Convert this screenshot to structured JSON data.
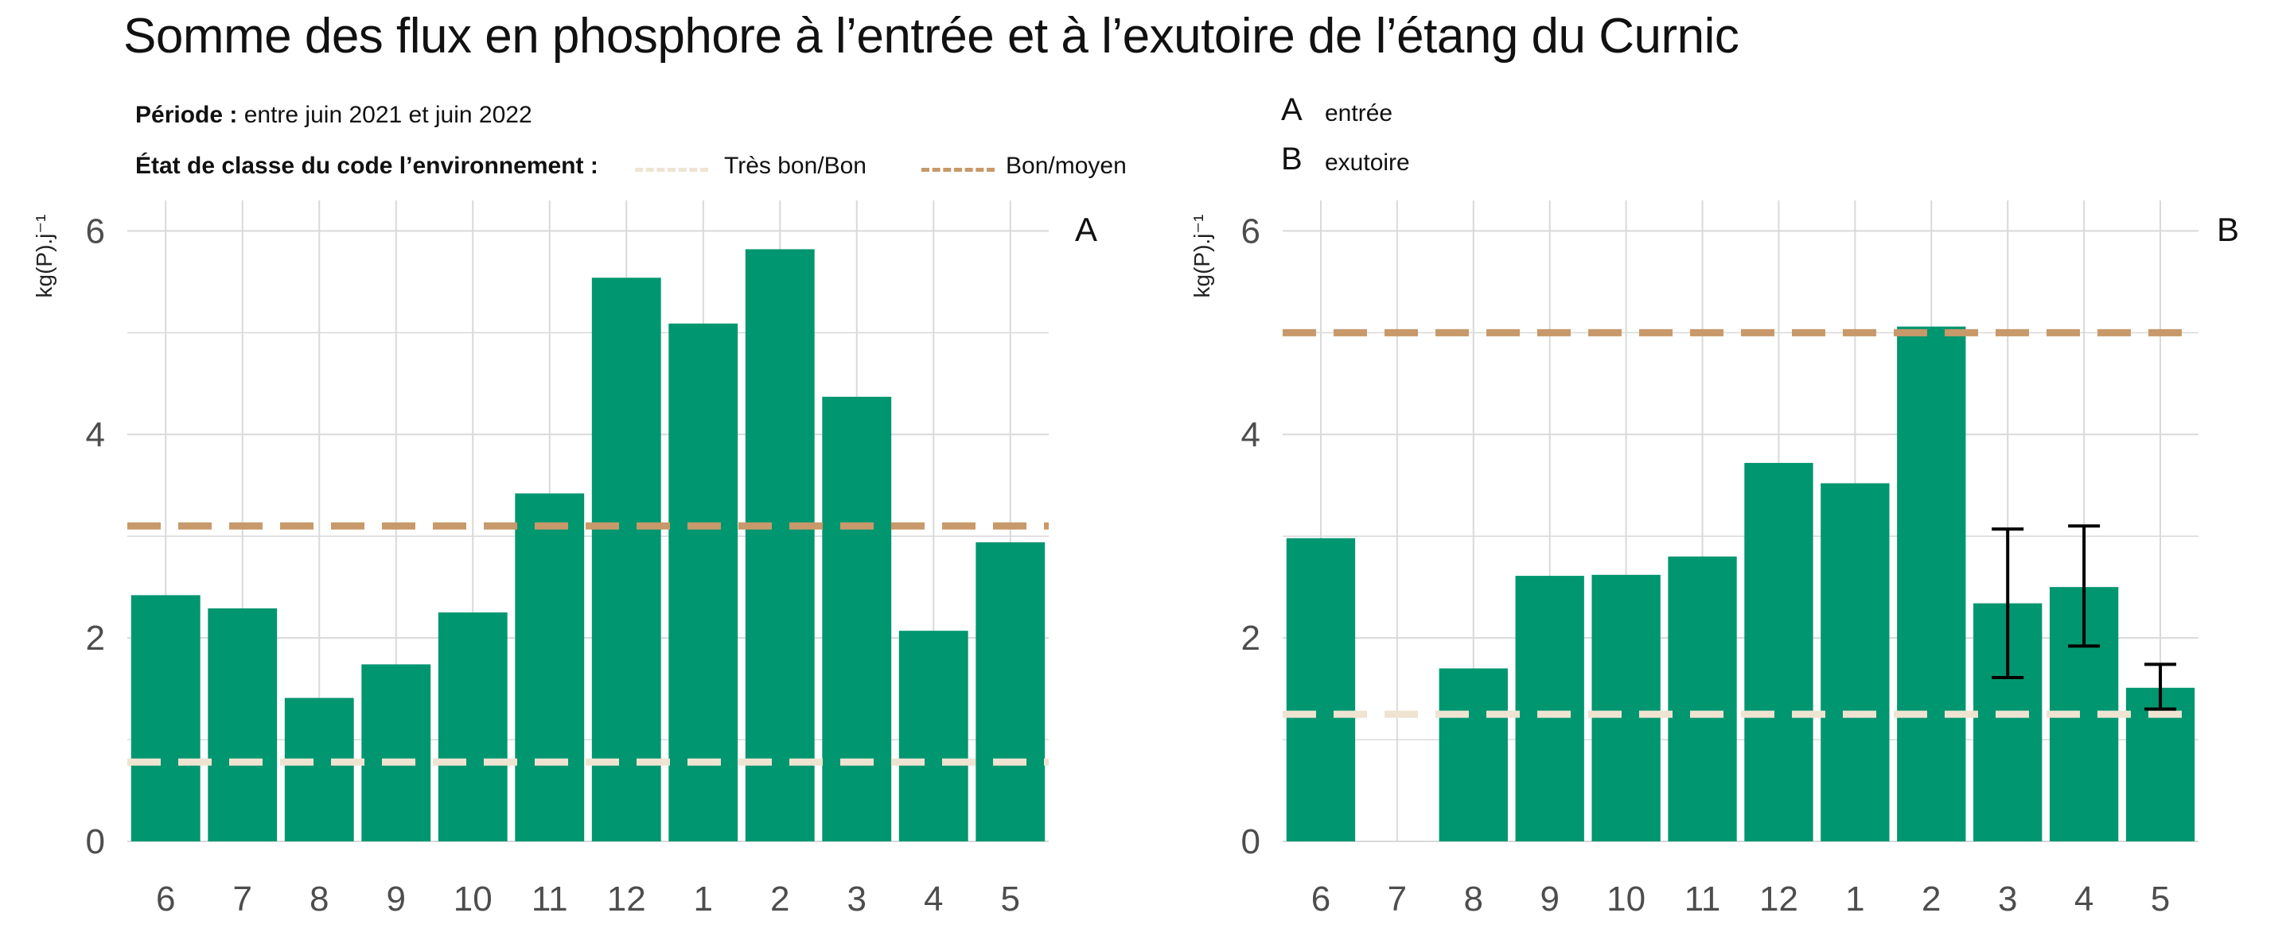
{
  "title": "Somme des flux en phosphore à l’entrée et à l’exutoire de l’étang du Curnic",
  "periode_label": "Période :",
  "periode_value": "entre juin 2021 et juin 2022",
  "etat_label": "État de classe du code l’environnement :",
  "legend_thresholds": [
    {
      "label": "Très bon/Bon",
      "color": "#efe3d2"
    },
    {
      "label": "Bon/moyen",
      "color": "#c8996a"
    }
  ],
  "panel_keys": [
    {
      "letter": "A",
      "desc": "entrée"
    },
    {
      "letter": "B",
      "desc": "exutoire"
    }
  ],
  "colors": {
    "bar": "#009670",
    "grid": "#d9d9d9",
    "errorbar": "#000000"
  },
  "chart_data": [
    {
      "type": "bar",
      "panel": "A",
      "ylabel": "kg(P).j⁻¹",
      "categories": [
        "6",
        "7",
        "8",
        "9",
        "10",
        "11",
        "12",
        "1",
        "2",
        "3",
        "4",
        "5"
      ],
      "values": [
        2.42,
        2.29,
        1.41,
        1.74,
        2.25,
        3.42,
        5.54,
        5.09,
        5.82,
        4.37,
        2.07,
        2.94
      ],
      "ylim": [
        0,
        6.3
      ],
      "yticks": [
        0,
        2,
        4,
        6
      ],
      "thresholds": {
        "tres_bon_bon": 0.78,
        "bon_moyen": 3.1
      },
      "grid": true
    },
    {
      "type": "bar",
      "panel": "B",
      "ylabel": "kg(P).j⁻¹",
      "categories": [
        "6",
        "7",
        "8",
        "9",
        "10",
        "11",
        "12",
        "1",
        "2",
        "3",
        "4",
        "5"
      ],
      "values": [
        2.98,
        null,
        1.7,
        2.61,
        2.62,
        2.8,
        3.72,
        3.52,
        5.06,
        2.34,
        2.5,
        1.51
      ],
      "errors": [
        null,
        null,
        null,
        null,
        null,
        null,
        null,
        null,
        null,
        [
          1.61,
          3.07
        ],
        [
          1.92,
          3.1
        ],
        [
          1.3,
          1.74
        ]
      ],
      "ylim": [
        0,
        6.3
      ],
      "yticks": [
        0,
        2,
        4,
        6
      ],
      "thresholds": {
        "tres_bon_bon": 1.25,
        "bon_moyen": 5.0
      },
      "grid": true
    }
  ]
}
